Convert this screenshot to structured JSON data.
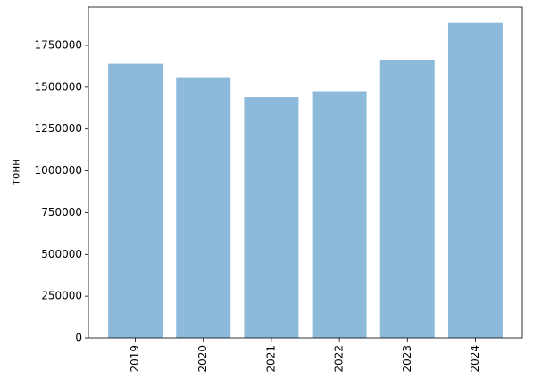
{
  "chart_data": {
    "type": "bar",
    "ylabel": "тонн",
    "categories": [
      "2019",
      "2020",
      "2021",
      "2022",
      "2023",
      "2024"
    ],
    "values": [
      1640000,
      1560000,
      1440000,
      1475000,
      1665000,
      1885000
    ],
    "color": "#8db9da",
    "ylim": [
      0,
      1979250
    ],
    "yticks": [
      0,
      250000,
      500000,
      750000,
      1000000,
      1250000,
      1500000,
      1750000
    ]
  }
}
